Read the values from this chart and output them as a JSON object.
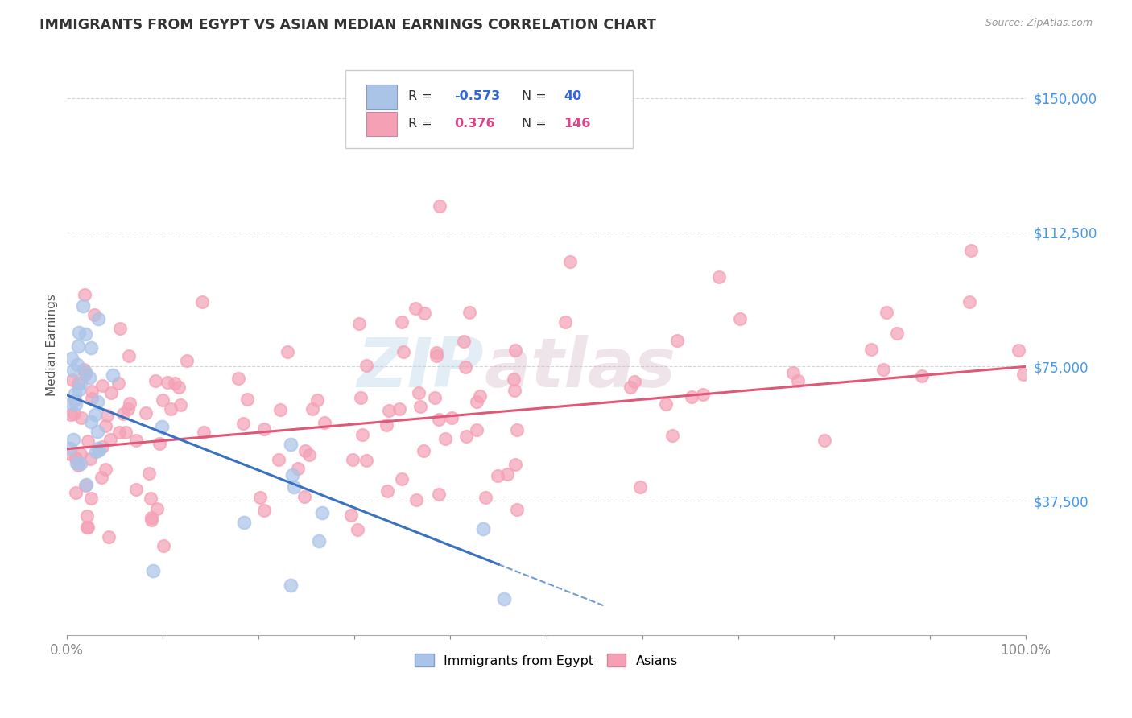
{
  "title": "IMMIGRANTS FROM EGYPT VS ASIAN MEDIAN EARNINGS CORRELATION CHART",
  "source_text": "Source: ZipAtlas.com",
  "ylabel": "Median Earnings",
  "xlim": [
    0.0,
    100.0
  ],
  "ylim": [
    0,
    162000
  ],
  "yticks": [
    37500,
    75000,
    112500,
    150000
  ],
  "ytick_labels": [
    "$37,500",
    "$75,000",
    "$112,500",
    "$150,000"
  ],
  "series1_color": "#aac4e8",
  "series2_color": "#f5a0b5",
  "line1_color": "#3a72c0",
  "line2_color": "#e05878",
  "watermark_color": "#b8d8f0",
  "background_color": "#ffffff",
  "grid_color": "#cccccc",
  "title_color": "#333333",
  "series1_label": "Immigrants from Egypt",
  "series2_label": "Asians",
  "r1_val": "-0.573",
  "r2_val": "0.376",
  "n1_val": "40",
  "n2_val": "146"
}
